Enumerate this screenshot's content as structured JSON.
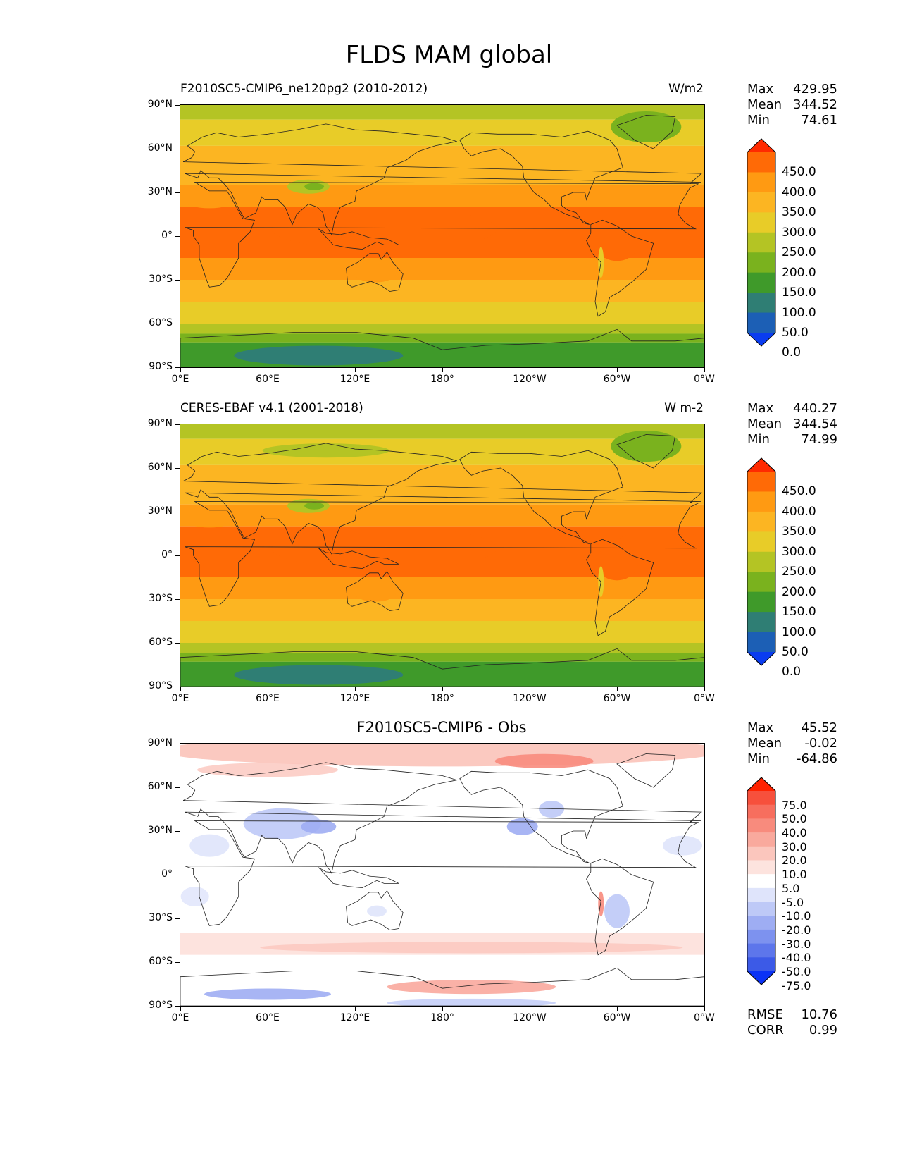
{
  "title": "FLDS MAM global",
  "lat_labels": [
    "90°N",
    "60°N",
    "30°N",
    "0°",
    "30°S",
    "60°S",
    "90°S"
  ],
  "lon_labels": [
    "0°E",
    "60°E",
    "120°E",
    "180°",
    "120°W",
    "60°W",
    "0°W"
  ],
  "panels": [
    {
      "id": "test",
      "left_title": "F2010SC5-CMIP6_ne120pg2 (2010-2012)",
      "center_title": "",
      "units": "W/m2",
      "stats": {
        "max_label": "Max",
        "max": "429.95",
        "mean_label": "Mean",
        "mean": "344.52",
        "min_label": "Min",
        "min": "74.61"
      },
      "colorbar": {
        "labels": [
          "450.0",
          "400.0",
          "350.0",
          "300.0",
          "250.0",
          "200.0",
          "150.0",
          "100.0",
          "50.0",
          "0.0"
        ],
        "colors": [
          "#ff2a00",
          "#ff6a06",
          "#ff9a12",
          "#fcb522",
          "#e8cc28",
          "#b4c424",
          "#7ab21e",
          "#3f9a2a",
          "#2f7e74",
          "#1c5fb5",
          "#0a3cf0"
        ]
      }
    },
    {
      "id": "obs",
      "left_title": "CERES-EBAF v4.1 (2001-2018)",
      "center_title": "",
      "units": "W m-2",
      "stats": {
        "max_label": "Max",
        "max": "440.27",
        "mean_label": "Mean",
        "mean": "344.54",
        "min_label": "Min",
        "min": "74.99"
      },
      "colorbar": {
        "labels": [
          "450.0",
          "400.0",
          "350.0",
          "300.0",
          "250.0",
          "200.0",
          "150.0",
          "100.0",
          "50.0",
          "0.0"
        ],
        "colors": [
          "#ff2a00",
          "#ff6a06",
          "#ff9a12",
          "#fcb522",
          "#e8cc28",
          "#b4c424",
          "#7ab21e",
          "#3f9a2a",
          "#2f7e74",
          "#1c5fb5",
          "#0a3cf0"
        ]
      }
    },
    {
      "id": "diff",
      "left_title": "",
      "center_title": "F2010SC5-CMIP6 - Obs",
      "units": "",
      "stats": {
        "max_label": "Max",
        "max": "45.52",
        "mean_label": "Mean",
        "mean": "-0.02",
        "min_label": "Min",
        "min": "-64.86"
      },
      "colorbar": {
        "labels": [
          "75.0",
          "50.0",
          "40.0",
          "30.0",
          "20.0",
          "10.0",
          "5.0",
          "-5.0",
          "-10.0",
          "-20.0",
          "-30.0",
          "-40.0",
          "-50.0",
          "-75.0"
        ],
        "colors": [
          "#ff2200",
          "#f7503c",
          "#f76e5e",
          "#f88b7d",
          "#f9a99d",
          "#fbc6bd",
          "#fde3de",
          "#ffffff",
          "#dfe4fb",
          "#bec9f7",
          "#9eadf3",
          "#7d92ef",
          "#5d76eb",
          "#3c5ae7",
          "#0a32f5"
        ]
      },
      "rmse_label": "RMSE",
      "rmse": "10.76",
      "corr_label": "CORR",
      "corr": "0.99"
    }
  ]
}
